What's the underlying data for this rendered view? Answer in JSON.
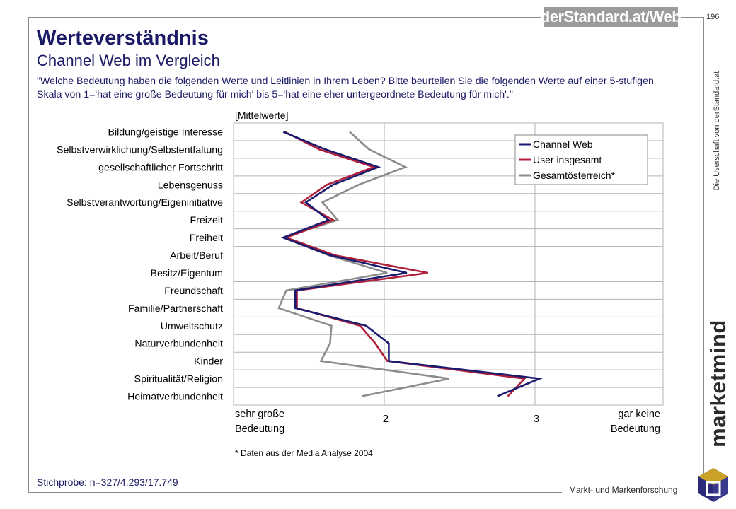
{
  "header": {
    "brand": "derStandard.at/Web",
    "page_number": "196",
    "title": "Werteverständnis",
    "subtitle": "Channel Web im Vergleich",
    "question": "\"Welche Bedeutung haben die folgenden Werte und Leitlinien in Ihrem Leben? Bitte beurteilen  Sie die folgenden Werte auf einer 5-stufigen Skala von 1='hat eine große Bedeutung für mich' bis 5='hat eine eher untergeordnete Bedeutung für mich'.\""
  },
  "side": {
    "vertical_text": "Die Userschaft von derStandard.at",
    "logo_text": "marketmind",
    "tagline": "Markt- und Markenforschung"
  },
  "footer": {
    "sample": "Stichprobe: n=327/4.293/17.749",
    "footnote": "* Daten aus der Media Analyse 2004"
  },
  "colors": {
    "channel_web": "#1a1a6e",
    "user_insgesamt": "#b0203a",
    "gesamtoesterreich": "#8c8c8c",
    "text_blue": "#1a1a66"
  },
  "chart_data": {
    "type": "line",
    "orientation": "horizontal",
    "title": "[Mittelwerte]",
    "categories": [
      "Bildung/geistige Interesse",
      "Selbstverwirklichung/Selbstentfaltung",
      "gesellschaftlicher Fortschritt",
      "Lebensgenuss",
      "Selbstverantwortung/Eigeninitiative",
      "Freizeit",
      "Freiheit",
      "Arbeit/Beruf",
      "Besitz/Eigentum",
      "Freundschaft",
      "Familie/Partnerschaft",
      "Umweltschutz",
      "Naturverbundenheit",
      "Kinder",
      "Spiritualität/Religion",
      "Heimatverbundenheit"
    ],
    "series": [
      {
        "name": "Channel Web",
        "values": [
          1.33,
          1.61,
          1.96,
          1.66,
          1.48,
          1.63,
          1.33,
          1.64,
          2.15,
          1.41,
          1.41,
          1.88,
          2.03,
          2.03,
          3.03,
          2.75
        ]
      },
      {
        "name": "User insgesamt",
        "values": [
          1.34,
          1.57,
          1.93,
          1.62,
          1.45,
          1.66,
          1.35,
          1.67,
          2.29,
          1.42,
          1.42,
          1.84,
          1.94,
          2.02,
          2.93,
          2.82
        ]
      },
      {
        "name": "Gesamtösterreich*",
        "values": [
          1.77,
          1.9,
          2.14,
          1.83,
          1.59,
          1.69,
          1.33,
          1.63,
          2.02,
          1.35,
          1.3,
          1.65,
          1.64,
          1.58,
          2.43,
          1.85
        ]
      }
    ],
    "x_ticks": [
      "2",
      "3"
    ],
    "x_tick_values": [
      2,
      3
    ],
    "xlim": [
      1,
      3.85
    ],
    "x_left_label": [
      "sehr große",
      "Bedeutung"
    ],
    "x_right_label": [
      "gar keine",
      "Bedeutung"
    ],
    "grid": true,
    "legend_position": "top-right"
  }
}
